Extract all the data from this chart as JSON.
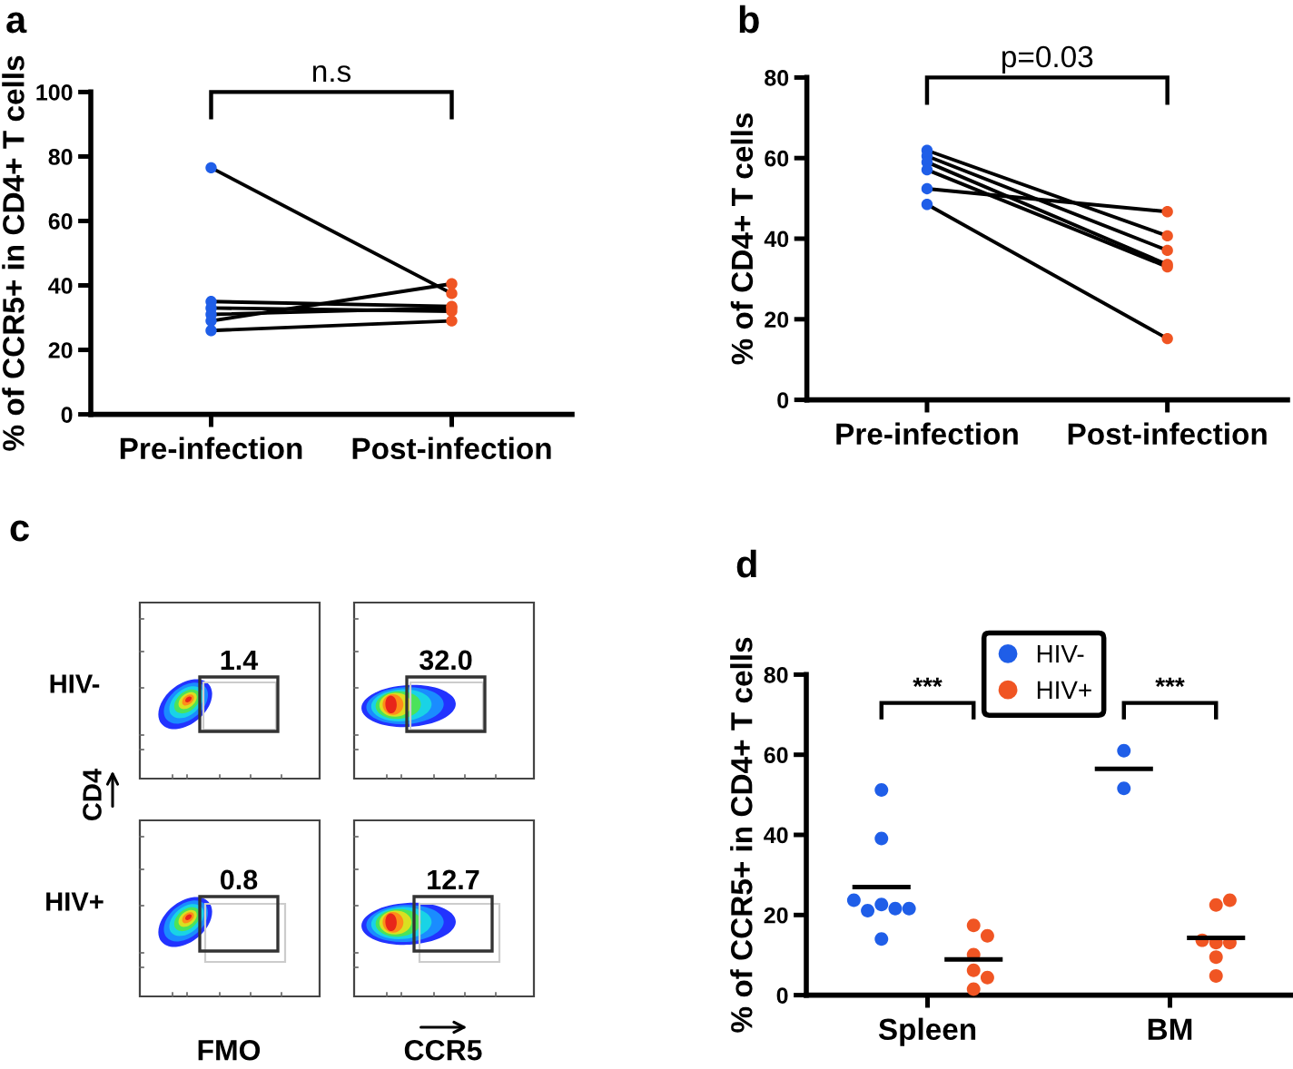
{
  "chart_data": [
    {
      "type": "line",
      "title": "a",
      "ylabel": "% of CCR5+ in CD4+ T cells",
      "categories": [
        "Pre-infection",
        "Post-infection"
      ],
      "ylim": [
        0,
        100
      ],
      "yticks": [
        0,
        20,
        40,
        60,
        80,
        100
      ],
      "marker": "circle",
      "annotations": [
        "n.s"
      ],
      "series": [
        {
          "color": "#000000",
          "colors": [
            "#1f5ee8",
            "#f05523"
          ],
          "values": [
            76.5,
            37.5
          ]
        },
        {
          "color": "#000000",
          "colors": [
            "#1f5ee8",
            "#f05523"
          ],
          "values": [
            35.0,
            33.5
          ]
        },
        {
          "color": "#000000",
          "colors": [
            "#1f5ee8",
            "#f05523"
          ],
          "values": [
            33.0,
            32.0
          ]
        },
        {
          "color": "#000000",
          "colors": [
            "#1f5ee8",
            "#f05523"
          ],
          "values": [
            31.0,
            33.0
          ]
        },
        {
          "color": "#000000",
          "colors": [
            "#1f5ee8",
            "#f05523"
          ],
          "values": [
            29.0,
            40.5
          ]
        },
        {
          "color": "#000000",
          "colors": [
            "#1f5ee8",
            "#f05523"
          ],
          "values": [
            26.0,
            29.0
          ]
        }
      ]
    },
    {
      "type": "line",
      "title": "b",
      "ylabel": "% of CD4+ T cells",
      "categories": [
        "Pre-infection",
        "Post-infection"
      ],
      "ylim": [
        0,
        80
      ],
      "yticks": [
        0,
        20,
        40,
        60,
        80
      ],
      "marker": "circle",
      "annotations": [
        "p=0.03"
      ],
      "series": [
        {
          "color": "#000000",
          "colors": [
            "#1f5ee8",
            "#f05523"
          ],
          "values": [
            61.9,
            40.7
          ]
        },
        {
          "color": "#000000",
          "colors": [
            "#1f5ee8",
            "#f05523"
          ],
          "values": [
            60.5,
            37.1
          ]
        },
        {
          "color": "#000000",
          "colors": [
            "#1f5ee8",
            "#f05523"
          ],
          "values": [
            59.0,
            33.6
          ]
        },
        {
          "color": "#000000",
          "colors": [
            "#1f5ee8",
            "#f05523"
          ],
          "values": [
            57.1,
            33.0
          ]
        },
        {
          "color": "#000000",
          "colors": [
            "#1f5ee8",
            "#f05523"
          ],
          "values": [
            52.4,
            46.7
          ]
        },
        {
          "color": "#000000",
          "colors": [
            "#1f5ee8",
            "#f05523"
          ],
          "values": [
            48.5,
            15.2
          ]
        }
      ]
    },
    {
      "type": "other",
      "title": "c",
      "ylabel": "CD4",
      "categories": [
        "FMO",
        "CCR5"
      ],
      "y_categories": [
        "HIV-",
        "HIV+"
      ],
      "annotations": [
        "1.4",
        "32.0",
        "0.8",
        "12.7"
      ]
    },
    {
      "type": "scatter",
      "title": "d",
      "ylabel": "% of CCR5+ in CD4+ T cells",
      "categories": [
        "Spleen",
        "BM"
      ],
      "ylim": [
        0,
        80
      ],
      "yticks": [
        0,
        20,
        40,
        60,
        80
      ],
      "marker": "circle",
      "legend": "top",
      "annotations": [
        "***",
        "***"
      ],
      "series": [
        {
          "name": "HIV-",
          "color": "#1f5ee8",
          "x": [
            "Spleen",
            "Spleen",
            "Spleen",
            "Spleen",
            "Spleen",
            "Spleen",
            "Spleen",
            "Spleen",
            "BM",
            "BM"
          ],
          "values": [
            51.2,
            39.1,
            22.6,
            21.6,
            21.1,
            21.6,
            23.7,
            14.0,
            61.0,
            51.6
          ]
        },
        {
          "name": "HIV+",
          "color": "#f05523",
          "x": [
            "Spleen",
            "Spleen",
            "Spleen",
            "Spleen",
            "Spleen",
            "Spleen",
            "BM",
            "BM",
            "BM",
            "BM",
            "BM",
            "BM",
            "BM"
          ],
          "values": [
            17.4,
            14.8,
            10.1,
            6.2,
            4.4,
            1.5,
            22.5,
            23.7,
            13.1,
            13.1,
            13.7,
            9.5,
            4.8
          ]
        }
      ],
      "ref_lines": [
        {
          "axis": "y",
          "value": 27.0,
          "color": "#000000"
        },
        {
          "axis": "y",
          "value": 8.9,
          "color": "#000000"
        },
        {
          "axis": "y",
          "value": 56.5,
          "color": "#000000"
        },
        {
          "axis": "y",
          "value": 14.3,
          "color": "#000000"
        }
      ]
    }
  ]
}
